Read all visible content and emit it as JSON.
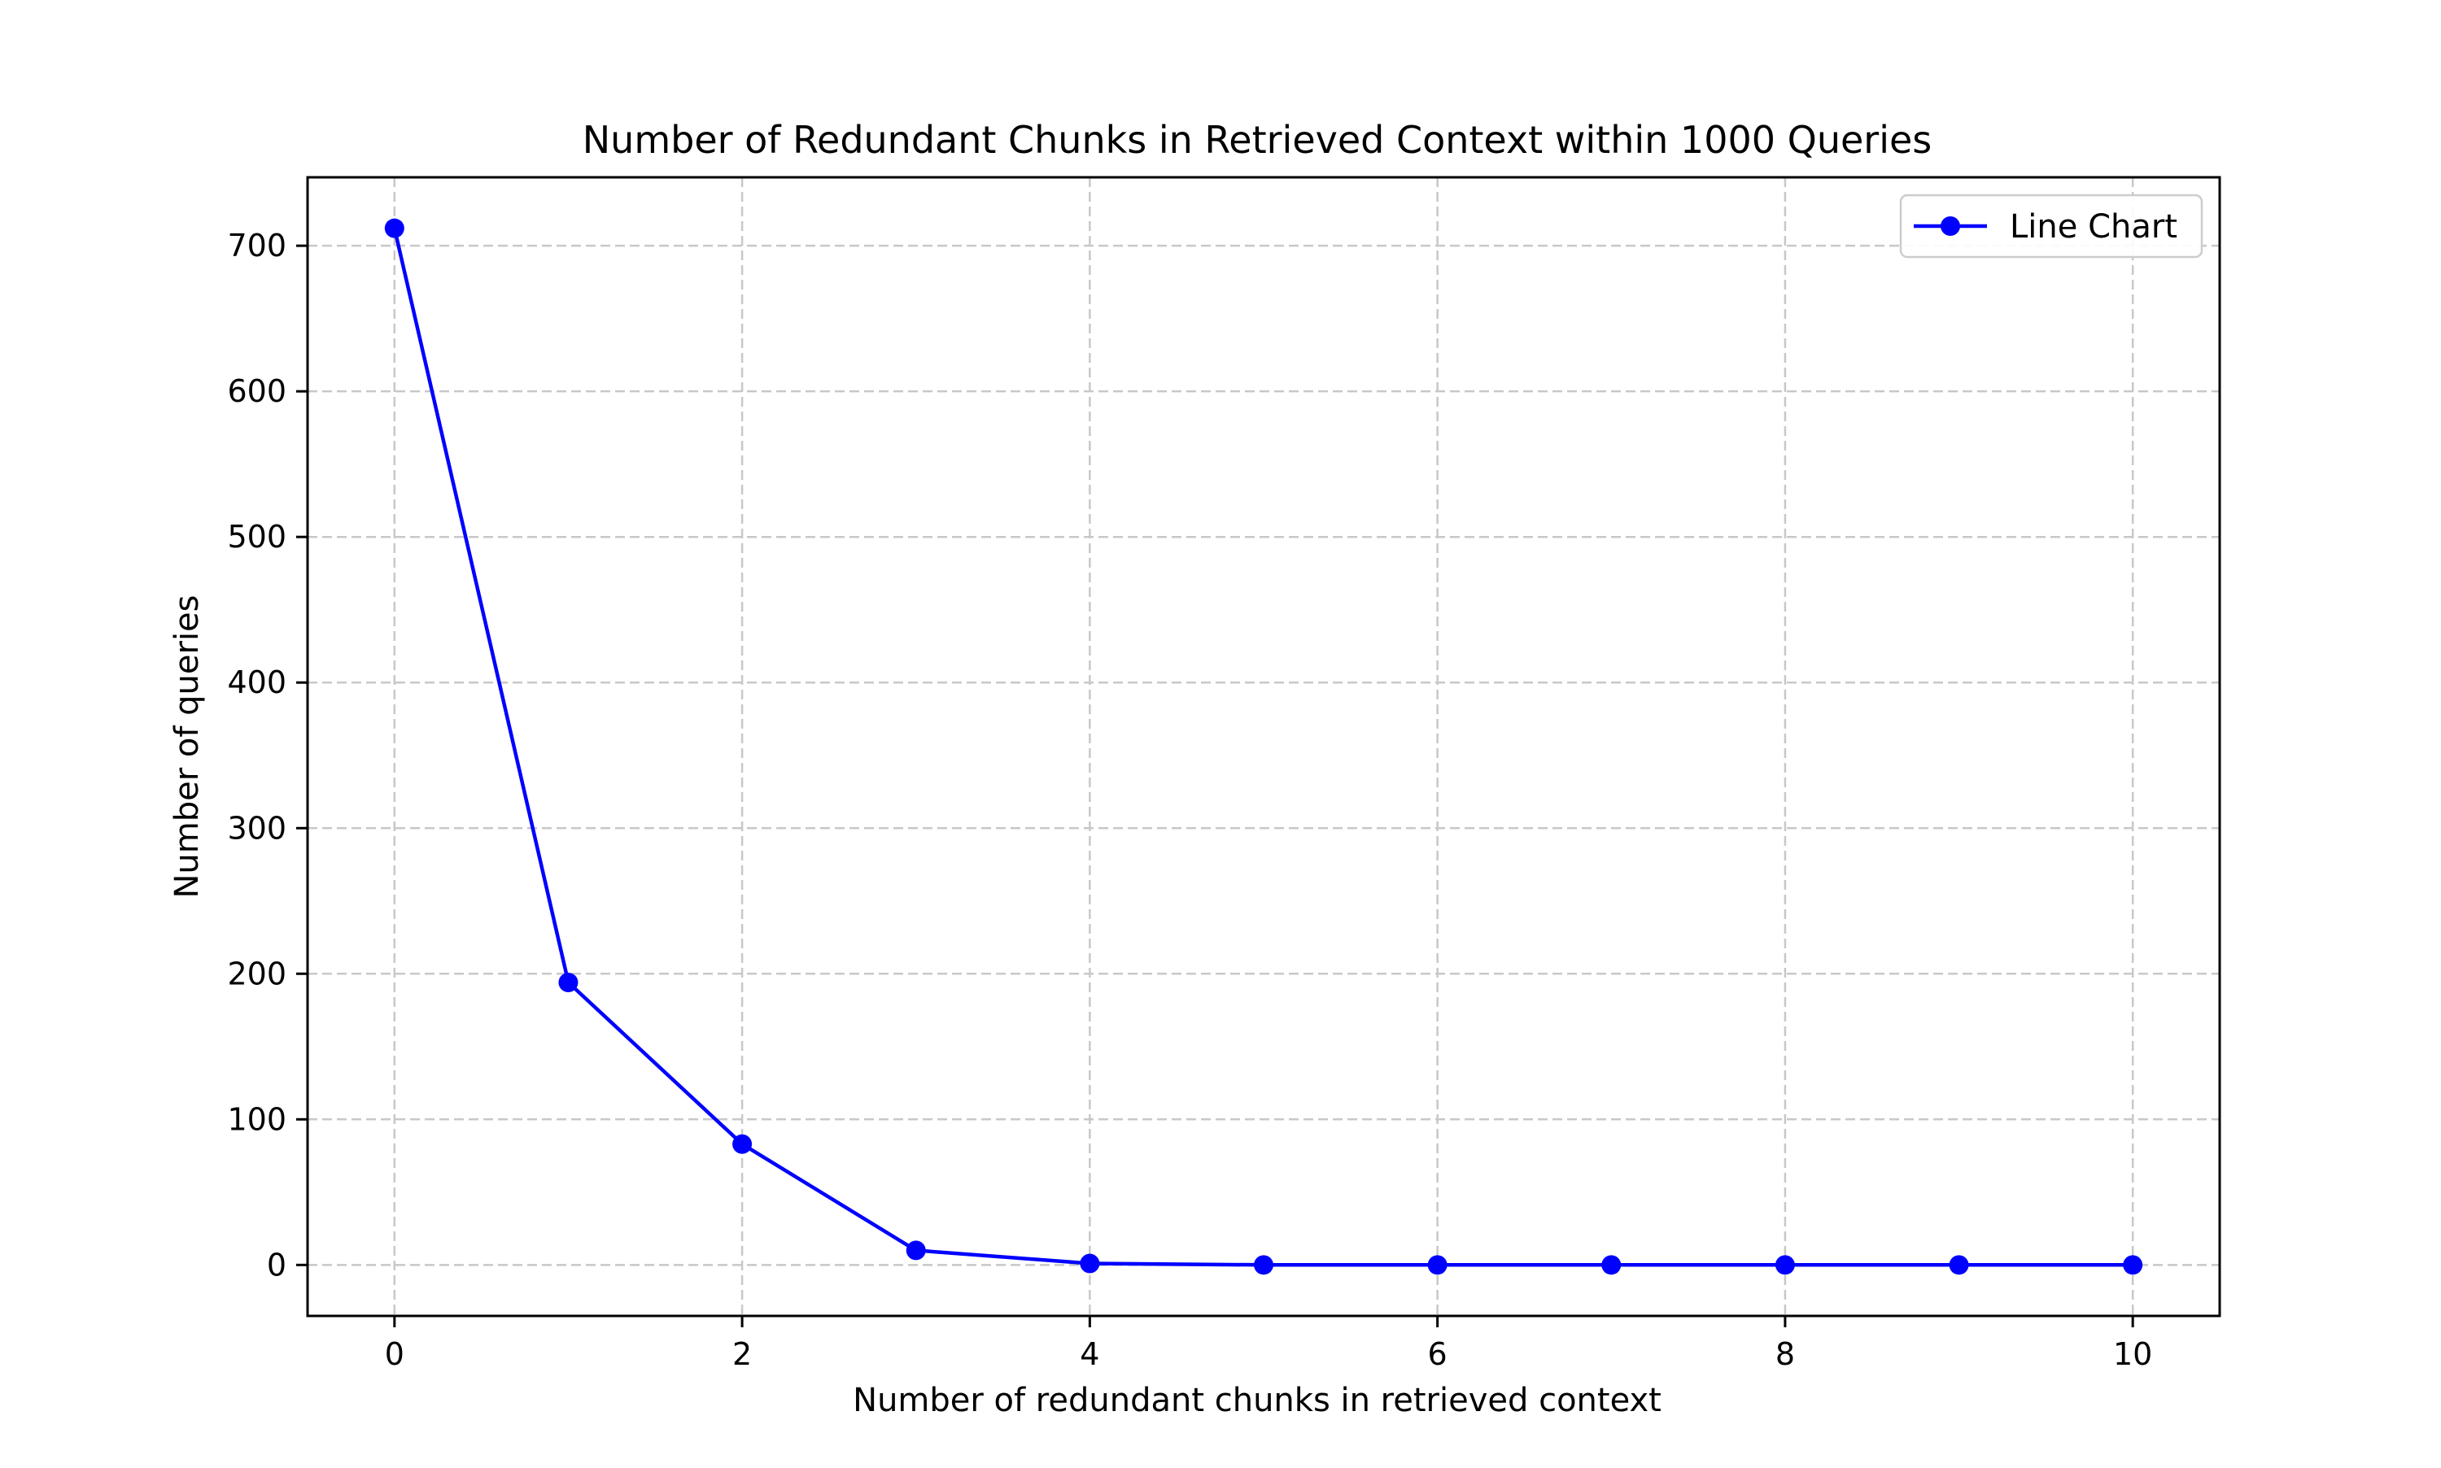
{
  "chart_data": {
    "type": "line",
    "title": "Number of Redundant Chunks in Retrieved Context within 1000 Queries",
    "xlabel": "Number of redundant chunks in retrieved context",
    "ylabel": "Number of queries",
    "xlim": [
      -0.5,
      10.5
    ],
    "ylim": [
      -35,
      747
    ],
    "xticks": [
      0,
      2,
      4,
      6,
      8,
      10
    ],
    "yticks": [
      0,
      100,
      200,
      300,
      400,
      500,
      600,
      700
    ],
    "grid": true,
    "legend_position": "top-right",
    "series": [
      {
        "name": "Line Chart",
        "color": "#0000ff",
        "marker": "circle",
        "x": [
          0,
          1,
          2,
          3,
          4,
          5,
          6,
          7,
          8,
          9,
          10
        ],
        "y": [
          712,
          194,
          83,
          10,
          1,
          0,
          0,
          0,
          0,
          0,
          0
        ]
      }
    ]
  }
}
